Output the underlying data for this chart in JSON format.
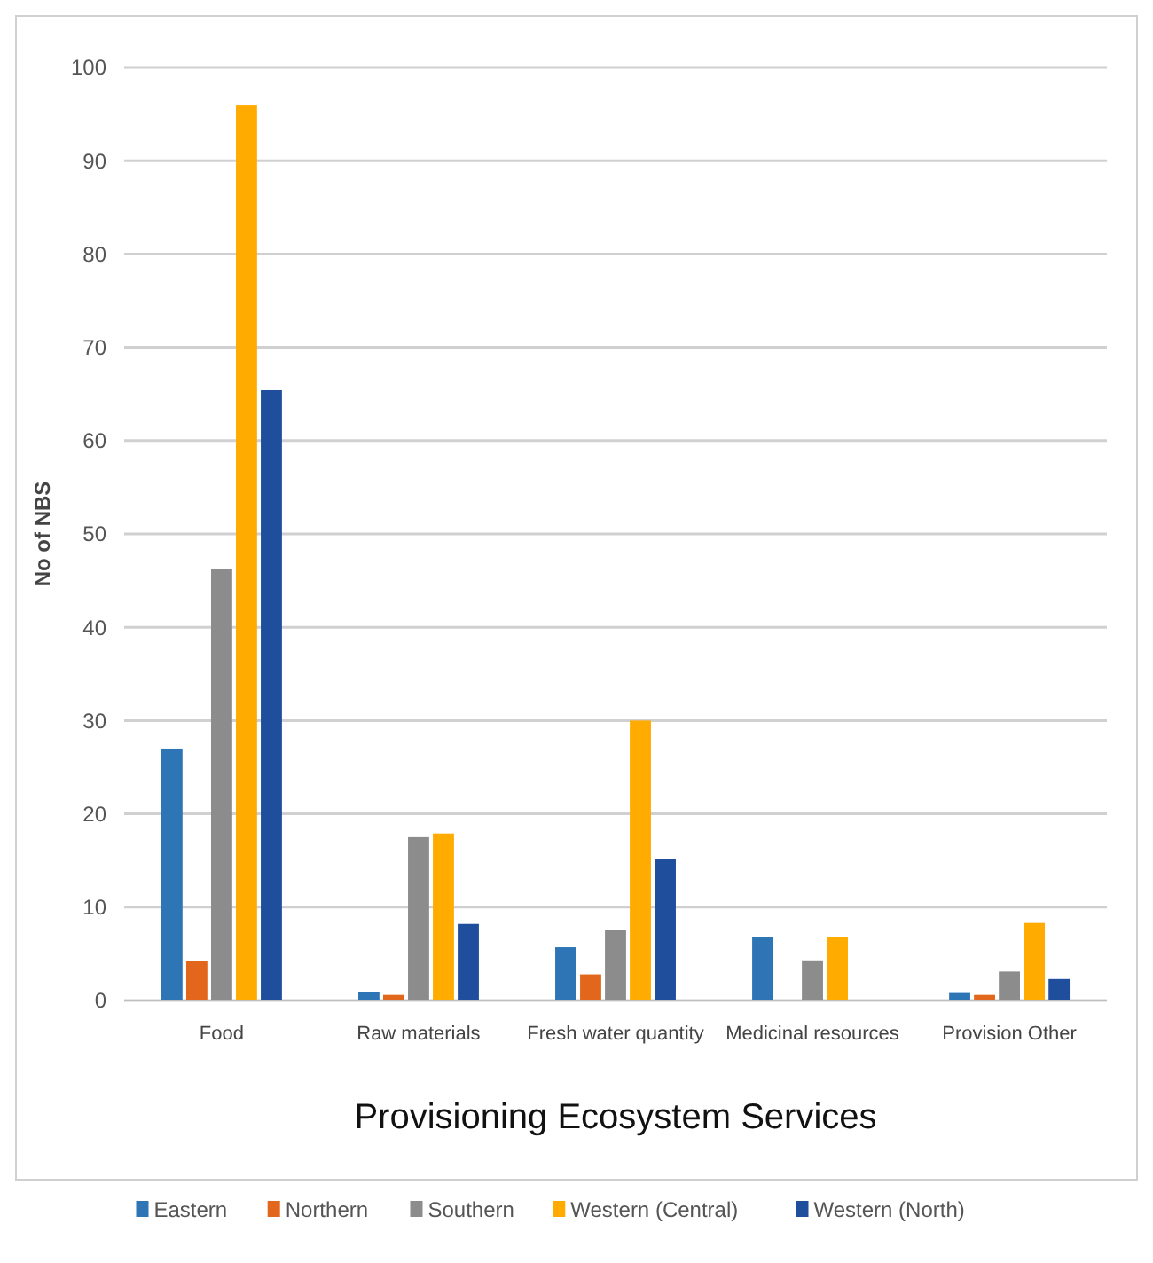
{
  "chart_data": {
    "type": "bar",
    "xlabel": "Provisioning Ecosystem Services",
    "ylabel": "No of NBS",
    "categories": [
      "Food",
      "Raw materials",
      "Fresh water quantity",
      "Medicinal resources",
      "Provision Other"
    ],
    "series": [
      {
        "name": "Eastern",
        "color": "#2e75b6",
        "values": [
          27,
          0.9,
          5.7,
          6.8,
          0.8
        ]
      },
      {
        "name": "Northern",
        "color": "#e2661c",
        "values": [
          4.2,
          0.6,
          2.8,
          0,
          0.6
        ]
      },
      {
        "name": "Southern",
        "color": "#8c8c8c",
        "values": [
          46.2,
          17.5,
          7.6,
          4.3,
          3.1
        ]
      },
      {
        "name": "Western (Central)",
        "color": "#ffab00",
        "values": [
          96,
          17.9,
          30,
          6.8,
          8.3
        ]
      },
      {
        "name": "Western (North)",
        "color": "#1f4e9c",
        "values": [
          65.4,
          8.2,
          15.2,
          0,
          2.3
        ]
      }
    ],
    "ylim": [
      0,
      100
    ],
    "yticks": [
      0,
      10,
      20,
      30,
      40,
      50,
      60,
      70,
      80,
      90,
      100
    ],
    "grid": "y",
    "legend": "bottom"
  }
}
